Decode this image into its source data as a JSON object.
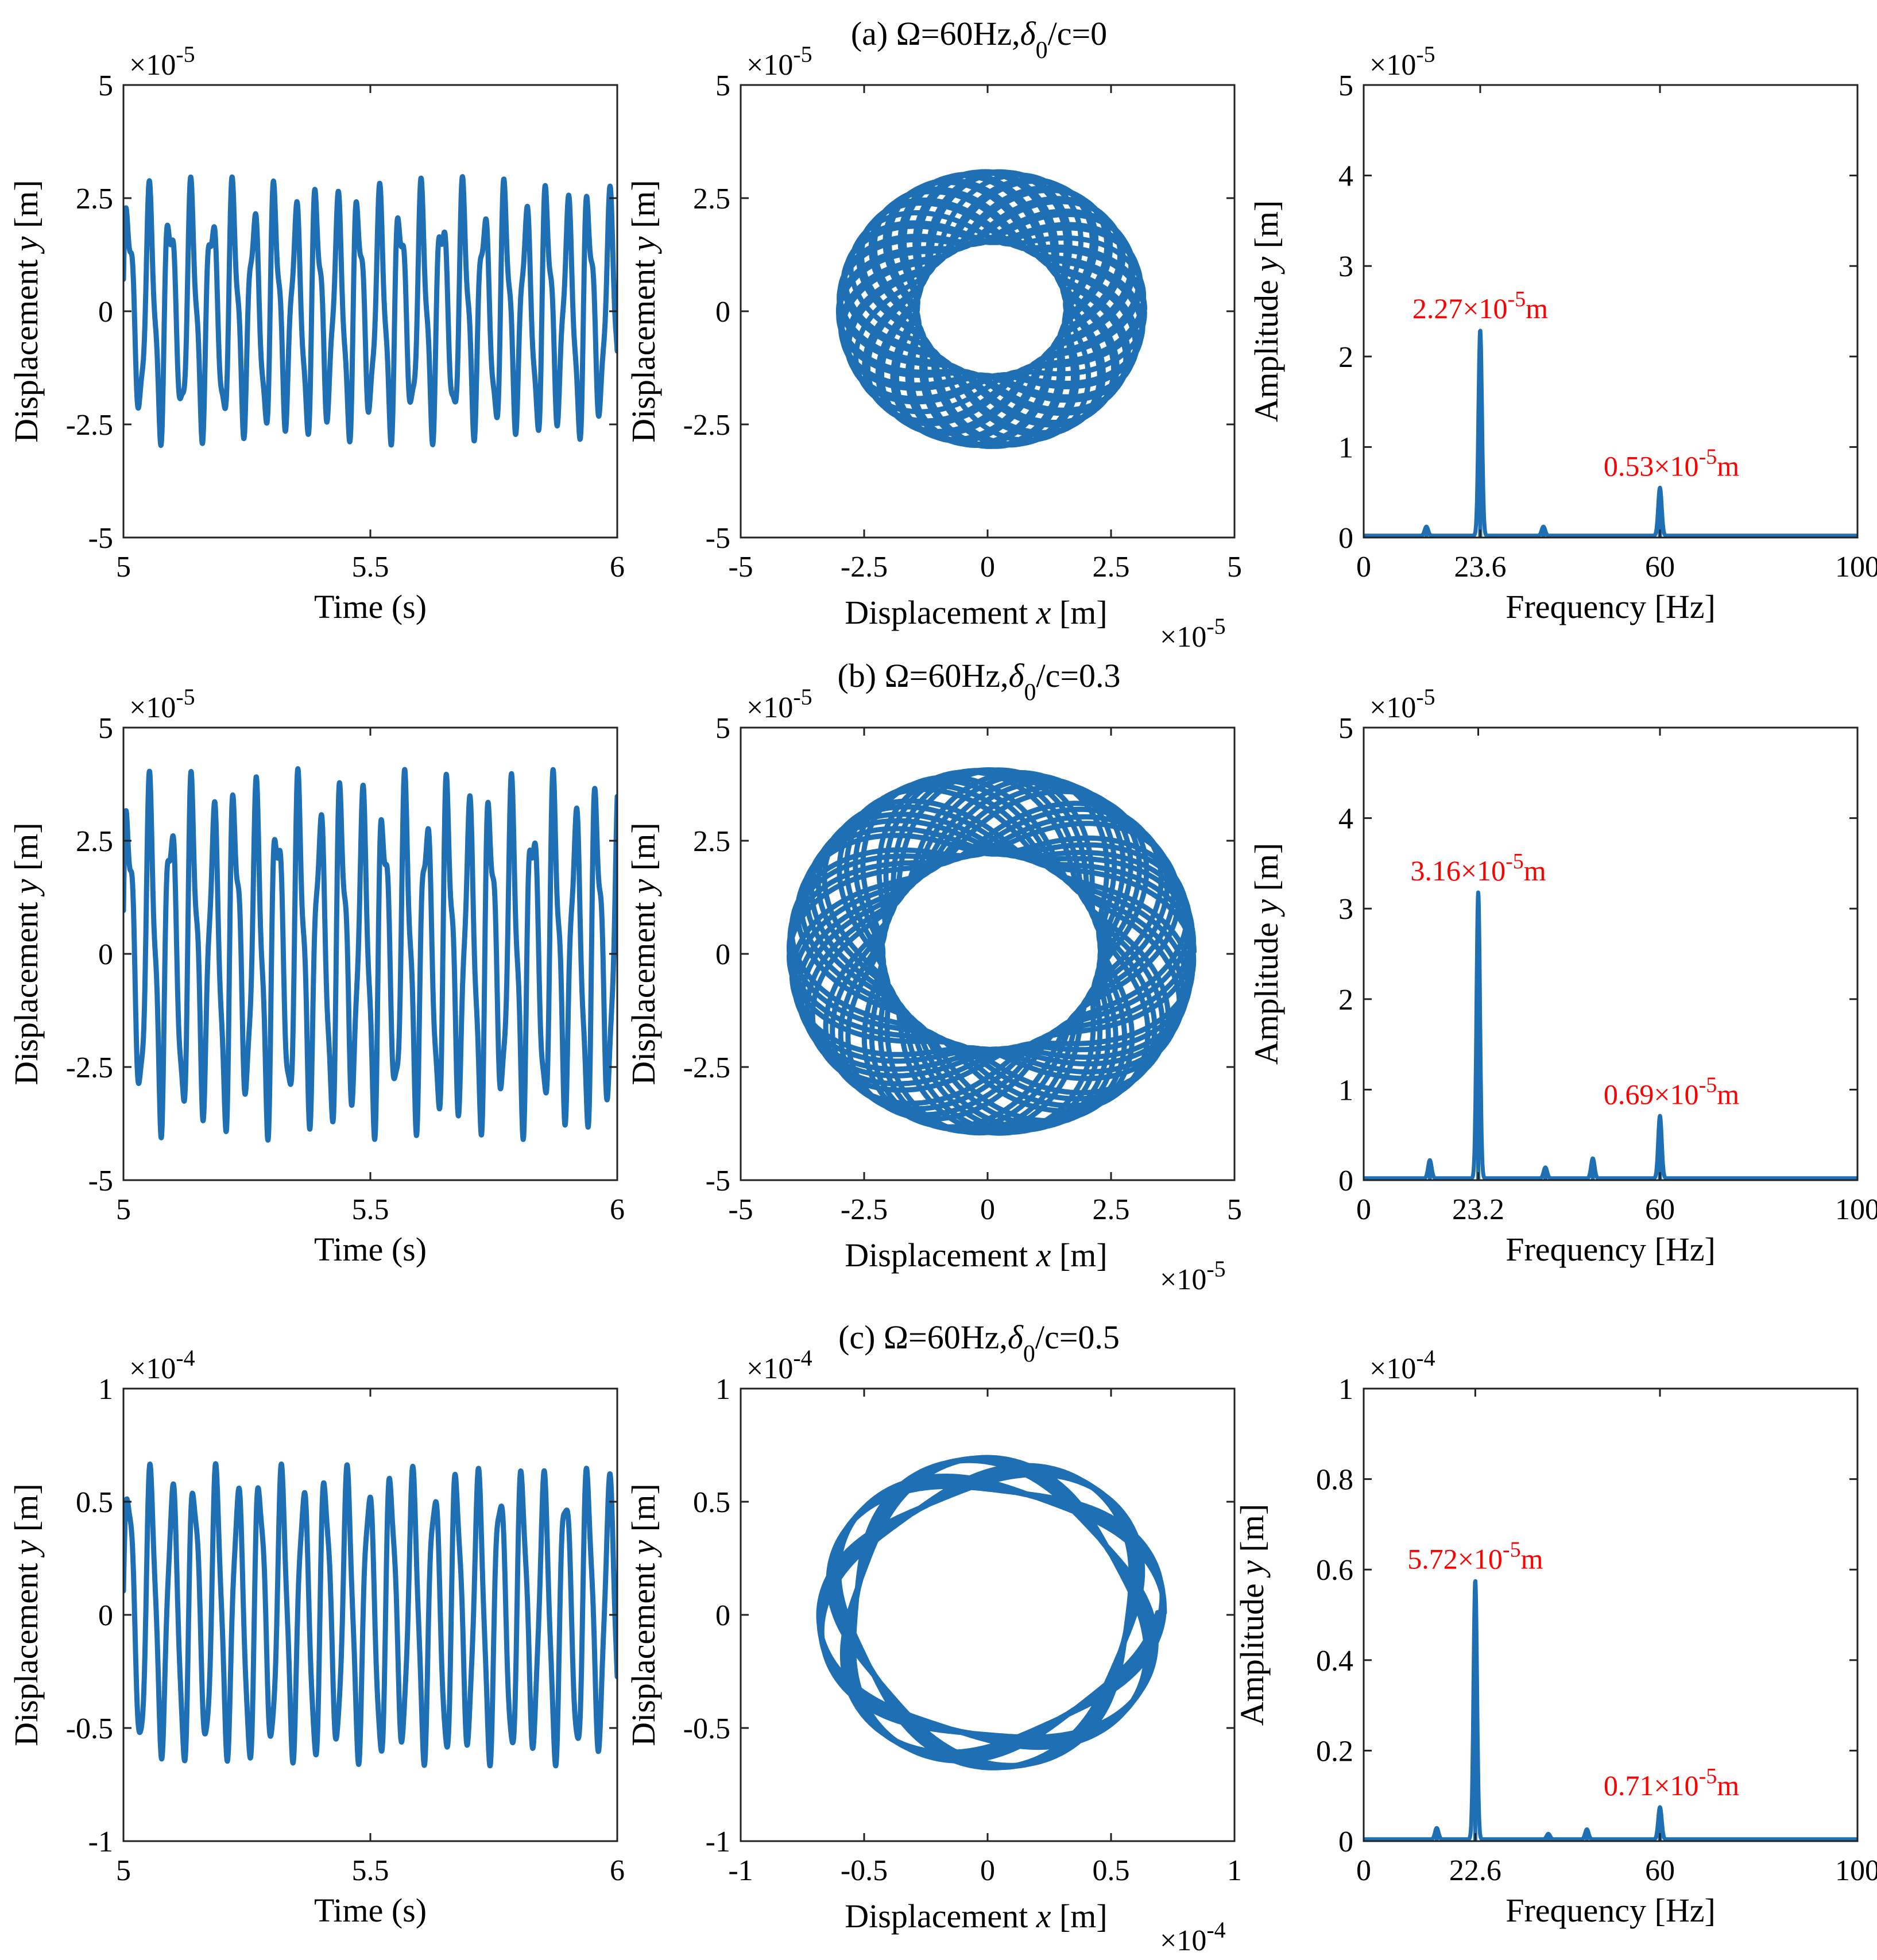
{
  "chart_data": [
    {
      "row": "a",
      "title": "(a) Ω=60Hz,δ0/c=0",
      "title_parts": [
        "(a) Ω=60Hz,",
        "δ",
        "0",
        "/c=0"
      ],
      "charts": [
        {
          "type": "line",
          "xlabel": "Time (s)",
          "ylabel": "Displacement y [m]",
          "ylabel_parts": [
            "Displacement ",
            "y",
            " [m]"
          ],
          "xlim": [
            5,
            6
          ],
          "ylim": [
            -5,
            5
          ],
          "xticks": [
            5,
            5.5,
            6
          ],
          "xtick_labels": [
            "5",
            "5.5",
            "6"
          ],
          "yticks": [
            -5,
            -2.5,
            0,
            2.5,
            5
          ],
          "ytick_labels": [
            "-5",
            "-2.5",
            "0",
            "2.5",
            "5"
          ],
          "y_exponent": "×10",
          "y_exponent_power": "-5",
          "signal": {
            "freq1": 23.6,
            "amp1": 2.27,
            "freq2": 60,
            "amp2": 0.53,
            "amp_sub": 0.3,
            "amp_sub2": 0.25
          }
        },
        {
          "type": "scatter",
          "xlabel": "Displacement x [m]",
          "xlabel_parts": [
            "Displacement ",
            "x",
            " [m]"
          ],
          "ylabel": "Displacement y [m]",
          "ylabel_parts": [
            "Displacement ",
            "y",
            " [m]"
          ],
          "xlim": [
            -5,
            5
          ],
          "ylim": [
            -5,
            5
          ],
          "xticks": [
            -5,
            -2.5,
            0,
            2.5,
            5
          ],
          "xtick_labels": [
            "-5",
            "-2.5",
            "0",
            "2.5",
            "5"
          ],
          "yticks": [
            -5,
            -2.5,
            0,
            2.5,
            5
          ],
          "ytick_labels": [
            "-5",
            "-2.5",
            "0",
            "2.5",
            "5"
          ],
          "x_exponent": "×10",
          "x_exponent_power": "-5",
          "y_exponent": "×10",
          "y_exponent_power": "-5",
          "orbit": {
            "r_outer": 3.1,
            "r_inner": 1.6,
            "r_base": 2.3,
            "r_mod": 0.8,
            "freq_ratio": 2.54,
            "turns": 24
          }
        },
        {
          "type": "line",
          "xlabel": "Frequency [Hz]",
          "ylabel": "Amplitude y [m]",
          "ylabel_parts": [
            "Amplitude ",
            "y",
            " [m]"
          ],
          "xlim": [
            0,
            100
          ],
          "ylim": [
            0,
            5
          ],
          "xticks": [
            0,
            23.6,
            60,
            100
          ],
          "xtick_labels": [
            "0",
            "23.6",
            "60",
            "100"
          ],
          "yticks": [
            0,
            1,
            2,
            3,
            4,
            5
          ],
          "ytick_labels": [
            "0",
            "1",
            "2",
            "3",
            "4",
            "5"
          ],
          "y_exponent": "×10",
          "y_exponent_power": "-5",
          "peaks": [
            {
              "f": 12.7,
              "a": 0.1
            },
            {
              "f": 23.6,
              "a": 2.27
            },
            {
              "f": 36.4,
              "a": 0.1
            },
            {
              "f": 60,
              "a": 0.53
            }
          ],
          "annotations": [
            {
              "text": "2.27×10",
              "power": "-5",
              "unit": "m",
              "x": 23.6,
              "y": 2.27,
              "value": "2.27×10⁻⁵m"
            },
            {
              "text": "0.53×10",
              "power": "-5",
              "unit": "m",
              "x": 60,
              "y": 0.53,
              "value": "0.53×10⁻⁵m"
            }
          ]
        }
      ]
    },
    {
      "row": "b",
      "title": "(b) Ω=60Hz,δ0/c=0.3",
      "title_parts": [
        "(b) Ω=60Hz,",
        "δ",
        "0",
        "/c=0.3"
      ],
      "charts": [
        {
          "type": "line",
          "xlabel": "Time (s)",
          "ylabel": "Displacement y [m]",
          "ylabel_parts": [
            "Displacement ",
            "y",
            " [m]"
          ],
          "xlim": [
            5,
            6
          ],
          "ylim": [
            -5,
            5
          ],
          "xticks": [
            5,
            5.5,
            6
          ],
          "xtick_labels": [
            "5",
            "5.5",
            "6"
          ],
          "yticks": [
            -5,
            -2.5,
            0,
            2.5,
            5
          ],
          "ytick_labels": [
            "-5",
            "-2.5",
            "0",
            "2.5",
            "5"
          ],
          "y_exponent": "×10",
          "y_exponent_power": "-5",
          "signal": {
            "freq1": 23.2,
            "amp1": 3.16,
            "freq2": 60,
            "amp2": 0.69,
            "amp_sub": 0.4,
            "amp_sub2": 0.4
          }
        },
        {
          "type": "scatter",
          "xlabel": "Displacement x [m]",
          "xlabel_parts": [
            "Displacement ",
            "x",
            " [m]"
          ],
          "ylabel": "Displacement y [m]",
          "ylabel_parts": [
            "Displacement ",
            "y",
            " [m]"
          ],
          "xlim": [
            -5,
            5
          ],
          "ylim": [
            -5,
            5
          ],
          "xticks": [
            -5,
            -2.5,
            0,
            2.5,
            5
          ],
          "xtick_labels": [
            "-5",
            "-2.5",
            "0",
            "2.5",
            "5"
          ],
          "yticks": [
            -5,
            -2.5,
            0,
            2.5,
            5
          ],
          "ytick_labels": [
            "-5",
            "-2.5",
            "0",
            "2.5",
            "5"
          ],
          "x_exponent": "×10",
          "x_exponent_power": "-5",
          "y_exponent": "×10",
          "y_exponent_power": "-5",
          "orbit": {
            "r_outer": 4.1,
            "r_inner": 2.2,
            "r_base": 3.15,
            "r_mod": 0.95,
            "freq_ratio": 2.586,
            "turns": 24
          }
        },
        {
          "type": "line",
          "xlabel": "Frequency [Hz]",
          "ylabel": "Amplitude y [m]",
          "ylabel_parts": [
            "Amplitude ",
            "y",
            " [m]"
          ],
          "xlim": [
            0,
            100
          ],
          "ylim": [
            0,
            5
          ],
          "xticks": [
            0,
            23.2,
            60,
            100
          ],
          "xtick_labels": [
            "0",
            "23.2",
            "60",
            "100"
          ],
          "yticks": [
            0,
            1,
            2,
            3,
            4,
            5
          ],
          "ytick_labels": [
            "0",
            "1",
            "2",
            "3",
            "4",
            "5"
          ],
          "y_exponent": "×10",
          "y_exponent_power": "-5",
          "peaks": [
            {
              "f": 13.4,
              "a": 0.2
            },
            {
              "f": 23.2,
              "a": 3.16
            },
            {
              "f": 36.8,
              "a": 0.12
            },
            {
              "f": 46.4,
              "a": 0.22
            },
            {
              "f": 60,
              "a": 0.69
            }
          ],
          "annotations": [
            {
              "text": "3.16×10",
              "power": "-5",
              "unit": "m",
              "x": 23.2,
              "y": 3.16,
              "value": "3.16×10⁻⁵m"
            },
            {
              "text": "0.69×10",
              "power": "-5",
              "unit": "m",
              "x": 60,
              "y": 0.69,
              "value": "0.69×10⁻⁵m"
            }
          ]
        }
      ]
    },
    {
      "row": "c",
      "title": "(c) Ω=60Hz,δ0/c=0.5",
      "title_parts": [
        "(c) Ω=60Hz,",
        "δ",
        "0",
        "/c=0.5"
      ],
      "charts": [
        {
          "type": "line",
          "xlabel": "Time (s)",
          "ylabel": "Displacement y [m]",
          "ylabel_parts": [
            "Displacement ",
            "y",
            " [m]"
          ],
          "xlim": [
            5,
            6
          ],
          "ylim": [
            -1,
            1
          ],
          "xticks": [
            5,
            5.5,
            6
          ],
          "xtick_labels": [
            "5",
            "5.5",
            "6"
          ],
          "yticks": [
            -1,
            -0.5,
            0,
            0.5,
            1
          ],
          "ytick_labels": [
            "-1",
            "-0.5",
            "0",
            "0.5",
            "1"
          ],
          "y_exponent": "×10",
          "y_exponent_power": "-4",
          "signal": {
            "freq1": 22.6,
            "amp1": 0.572,
            "freq2": 60,
            "amp2": 0.071,
            "amp_sub": 0.05,
            "amp_sub2": 0.04
          }
        },
        {
          "type": "scatter",
          "xlabel": "Displacement x [m]",
          "xlabel_parts": [
            "Displacement ",
            "x",
            " [m]"
          ],
          "ylabel": "Displacement y [m]",
          "ylabel_parts": [
            "Displacement ",
            "y",
            " [m]"
          ],
          "xlim": [
            -1,
            1
          ],
          "ylim": [
            -1,
            1
          ],
          "xticks": [
            -1,
            -0.5,
            0,
            0.5,
            1
          ],
          "xtick_labels": [
            "-1",
            "-0.5",
            "0",
            "0.5",
            "1"
          ],
          "yticks": [
            -1,
            -0.5,
            0,
            0.5,
            1
          ],
          "ytick_labels": [
            "-1",
            "-0.5",
            "0",
            "0.5",
            "1"
          ],
          "x_exponent": "×10",
          "x_exponent_power": "-4",
          "y_exponent": "×10",
          "y_exponent_power": "-4",
          "orbit": {
            "r_outer": 0.7,
            "r_inner": 0.55,
            "r_base": 0.625,
            "r_mod": 0.075,
            "freq_ratio": 2.655,
            "turns": 12
          }
        },
        {
          "type": "line",
          "xlabel": "Frequency [Hz]",
          "ylabel": "Amplitude y [m]",
          "ylabel_parts": [
            "Amplitude ",
            "y",
            " [m]"
          ],
          "xlim": [
            0,
            100
          ],
          "ylim": [
            0,
            1
          ],
          "xticks": [
            0,
            22.6,
            60,
            100
          ],
          "xtick_labels": [
            "0",
            "22.6",
            "60",
            "100"
          ],
          "yticks": [
            0,
            0.2,
            0.4,
            0.6,
            0.8,
            1
          ],
          "ytick_labels": [
            "0",
            "0.2",
            "0.4",
            "0.6",
            "0.8",
            "1"
          ],
          "y_exponent": "×10",
          "y_exponent_power": "-4",
          "peaks": [
            {
              "f": 14.8,
              "a": 0.025
            },
            {
              "f": 22.6,
              "a": 0.572
            },
            {
              "f": 37.4,
              "a": 0.012
            },
            {
              "f": 45.2,
              "a": 0.022
            },
            {
              "f": 60,
              "a": 0.071
            }
          ],
          "annotations": [
            {
              "text": "5.72×10",
              "power": "-5",
              "unit": "m",
              "x": 22.6,
              "y": 0.572,
              "value": "5.72×10⁻⁵m"
            },
            {
              "text": "0.71×10",
              "power": "-5",
              "unit": "m",
              "x": 60,
              "y": 0.071,
              "value": "0.71×10⁻⁵m"
            }
          ]
        }
      ]
    }
  ],
  "colors": {
    "curve": "#1f6fb5",
    "annotation": "#ff0000",
    "axis": "#222222"
  }
}
